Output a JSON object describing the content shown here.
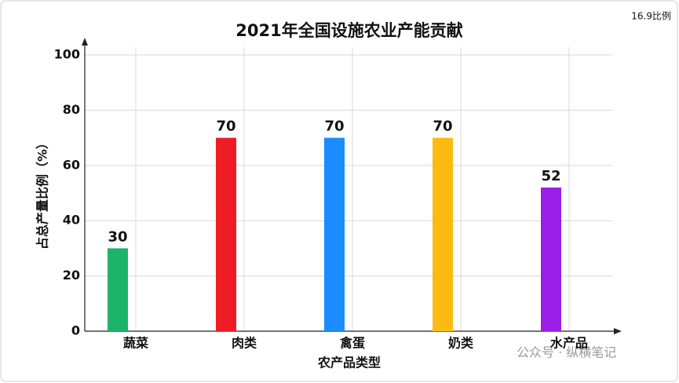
{
  "chart_data": {
    "type": "bar",
    "title": "2021年全国设施农业产能贡献",
    "corner_note": "16.9比例",
    "watermark": "公众号 · 纵横笔记",
    "x_label": "农产品类型",
    "y_label": "占总产量比例（%）",
    "categories": [
      "蔬菜",
      "肉类",
      "禽蛋",
      "奶类",
      "水产品"
    ],
    "values": [
      30,
      70,
      70,
      70,
      52
    ],
    "colors": [
      "#1db36a",
      "#ee1c25",
      "#1a8cff",
      "#fbbb12",
      "#9b1ee6"
    ],
    "ylim": [
      0,
      100
    ],
    "yticks": [
      0,
      20,
      40,
      60,
      80,
      100
    ],
    "grid": true
  }
}
